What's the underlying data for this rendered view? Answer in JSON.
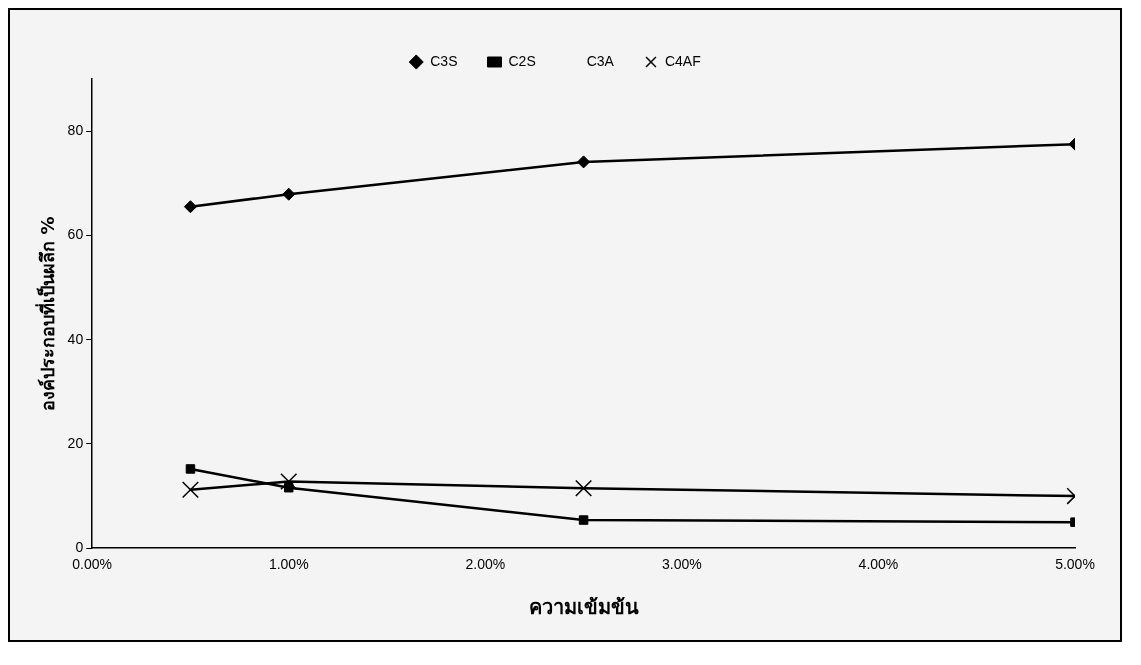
{
  "chart_data": {
    "type": "line",
    "xlabel": "ความเข้มข้น",
    "ylabel": "องค์ประกอบที่เป็นผลึก %",
    "x": [
      0.5,
      1,
      2.5,
      5
    ],
    "series": [
      {
        "name": "C3S",
        "color": "#000000",
        "marker": "diamond",
        "values": [
          65.5,
          67.9,
          74.1,
          77.5
        ]
      },
      {
        "name": "C2S",
        "color": "#000000",
        "marker": "square",
        "values": [
          15.2,
          11.6,
          5.4,
          5
        ]
      },
      {
        "name": "C3A",
        "marker": "none",
        "values": [
          null,
          null,
          null,
          null
        ]
      },
      {
        "name": "C4AF",
        "color": "#000000",
        "marker": "cross",
        "values": [
          11.2,
          12.8,
          11.5,
          10
        ]
      }
    ],
    "xlim": [
      0,
      5
    ],
    "xticks": [
      {
        "value": 0,
        "label": "0.00%"
      },
      {
        "value": 1,
        "label": "1.00%"
      },
      {
        "value": 2,
        "label": "2.00%"
      },
      {
        "value": 3,
        "label": "3.00%"
      },
      {
        "value": 4,
        "label": "4.00%"
      },
      {
        "value": 5,
        "label": "5.00%"
      }
    ],
    "ylim": [
      0,
      90
    ],
    "yticks": [
      0,
      20,
      40,
      60,
      80
    ],
    "grid": false,
    "legend": "top",
    "line_style": "solid"
  }
}
